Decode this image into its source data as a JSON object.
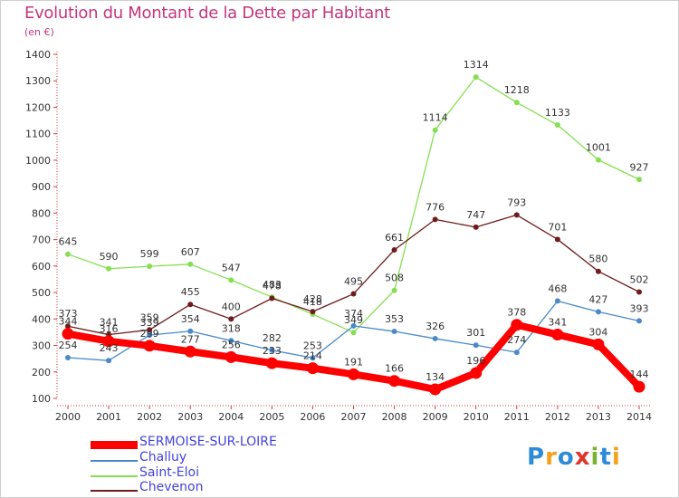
{
  "title": "Evolution du Montant de la Dette par Habitant",
  "subtitle": "(en €)",
  "logo": {
    "text": "Proxiti",
    "letters": [
      {
        "ch": "P",
        "color": "#2e8bd8"
      },
      {
        "ch": "r",
        "color": "#f3a21b"
      },
      {
        "ch": "o",
        "color": "#2e8bd8"
      },
      {
        "ch": "x",
        "color": "#e0352b"
      },
      {
        "ch": "i",
        "color": "#7ab32e"
      },
      {
        "ch": "t",
        "color": "#2e8bd8"
      },
      {
        "ch": "i",
        "color": "#f3a21b"
      }
    ]
  },
  "chart_data": {
    "type": "line",
    "title": "Evolution du Montant de la Dette par Habitant",
    "subtitle": "(en €)",
    "xlabel": "",
    "ylabel": "",
    "x": [
      "2000",
      "2001",
      "2002",
      "2003",
      "2004",
      "2005",
      "2006",
      "2007",
      "2008",
      "2009",
      "2010",
      "2011",
      "2012",
      "2013",
      "2014"
    ],
    "ylim": [
      100,
      1400
    ],
    "yticks": [
      100,
      200,
      300,
      400,
      500,
      600,
      700,
      800,
      900,
      1000,
      1100,
      1200,
      1300,
      1400
    ],
    "grid": false,
    "legend_position": "bottom-left",
    "series": [
      {
        "name": "SERMOISE-SUR-LOIRE",
        "color": "#ff0000",
        "values": [
          344,
          316,
          299,
          277,
          256,
          233,
          214,
          191,
          166,
          134,
          196,
          378,
          341,
          304,
          144
        ]
      },
      {
        "name": "Challuy",
        "color": "#4a8ac9",
        "values": [
          254,
          243,
          339,
          354,
          318,
          282,
          253,
          374,
          353,
          326,
          301,
          274,
          468,
          427,
          393
        ]
      },
      {
        "name": "Saint-Eloi",
        "color": "#86df52",
        "values": [
          645,
          590,
          599,
          607,
          547,
          483,
          418,
          349,
          508,
          1114,
          1314,
          1218,
          1133,
          1001,
          927
        ]
      },
      {
        "name": "Chevenon",
        "color": "#6e1c1c",
        "values": [
          373,
          341,
          359,
          455,
          400,
          478,
          428,
          495,
          661,
          776,
          747,
          793,
          701,
          580,
          502
        ]
      }
    ],
    "data_labels": {
      "SERMOISE-SUR-LOIRE": [
        "344",
        "316",
        "299",
        "277",
        "256",
        "233",
        "214",
        "191",
        "166",
        "134",
        "196",
        "378",
        "341",
        "304",
        "144"
      ],
      "Challuy": [
        "254",
        "243",
        "339",
        "354",
        "318",
        "282",
        "253",
        "374",
        "353",
        "326",
        "301",
        "274",
        "468",
        "427",
        "393"
      ],
      "Saint-Eloi": [
        "645",
        "590",
        "599",
        "607",
        "547",
        "483",
        "418",
        "349",
        "508",
        "1114",
        "1314",
        "1218",
        "1133",
        "1001",
        "927"
      ],
      "Chevenon": [
        "373",
        "341",
        "359",
        "455",
        "400",
        "478",
        "428",
        "495",
        "661",
        "776",
        "747",
        "793",
        "701",
        "580",
        "502"
      ]
    }
  }
}
